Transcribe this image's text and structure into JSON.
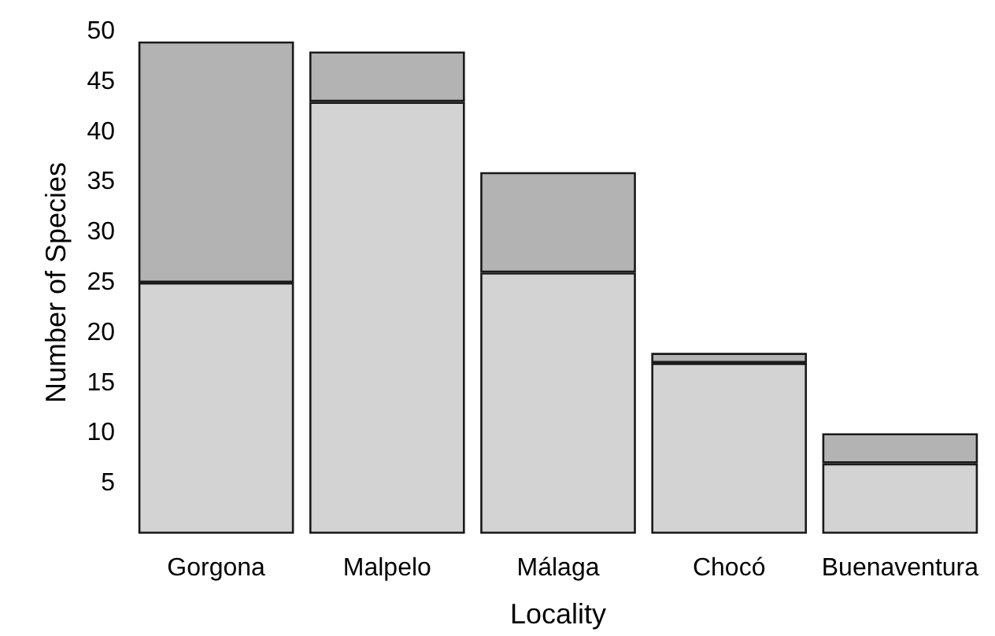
{
  "chart_data": {
    "type": "bar",
    "xlabel": "Locality",
    "ylabel": "Number of Species",
    "categories": [
      "Gorgona",
      "Malpelo",
      "Málaga",
      "Chocó",
      "Buenaventura"
    ],
    "stacked": true,
    "series": [
      {
        "color": "#d3d3d3",
        "values": [
          25,
          43,
          26,
          17,
          7
        ]
      },
      {
        "color": "#b3b3b3",
        "values": [
          24,
          5,
          10,
          1,
          3
        ]
      }
    ],
    "ylim": [
      0,
      50
    ],
    "yticks": [
      5,
      10,
      15,
      20,
      25,
      30,
      35,
      40,
      45,
      50
    ],
    "grid": false
  }
}
